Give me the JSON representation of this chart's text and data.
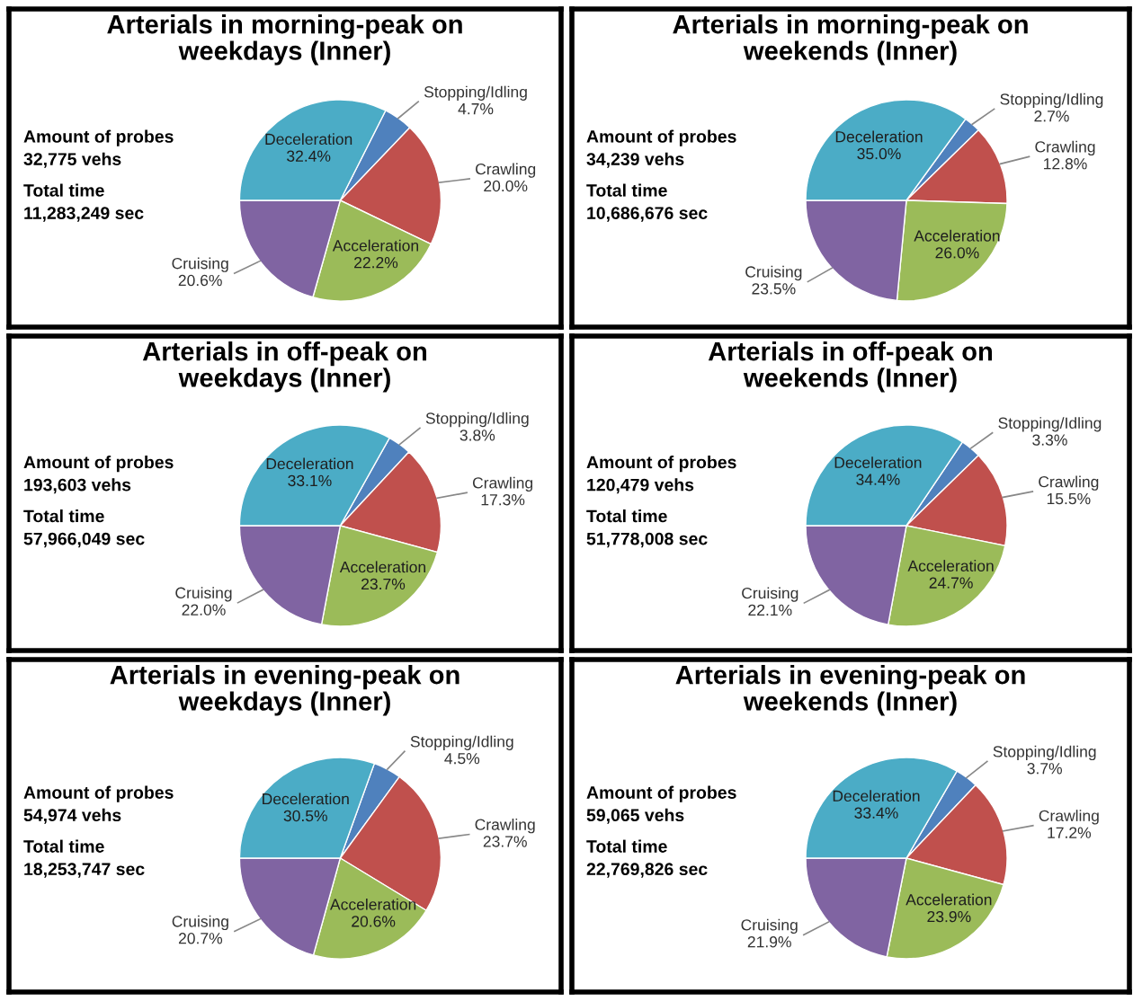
{
  "chart_data": [
    {
      "type": "pie",
      "title": "Arterials in morning-peak on weekdays (Inner)",
      "categories": [
        "Stopping/Idling",
        "Crawling",
        "Acceleration",
        "Cruising",
        "Deceleration"
      ],
      "values": [
        4.7,
        20.0,
        22.2,
        20.6,
        32.4
      ],
      "value_labels": [
        "4.7%",
        "20.0%",
        "22.2%",
        "20.6%",
        "32.4%"
      ],
      "colors": [
        "#4f81bd",
        "#c0504d",
        "#9bbb59",
        "#8064a2",
        "#4bacc6"
      ],
      "annotations": [
        "Amount of probes\n32,775 vehs",
        "Total time\n11,283,249 sec"
      ]
    },
    {
      "type": "pie",
      "title": "Arterials in morning-peak on weekends (Inner)",
      "categories": [
        "Stopping/Idling",
        "Crawling",
        "Acceleration",
        "Cruising",
        "Deceleration"
      ],
      "values": [
        2.7,
        12.8,
        26.0,
        23.5,
        35.0
      ],
      "value_labels": [
        "2.7%",
        "12.8%",
        "26.0%",
        "23.5%",
        "35.0%"
      ],
      "colors": [
        "#4f81bd",
        "#c0504d",
        "#9bbb59",
        "#8064a2",
        "#4bacc6"
      ],
      "annotations": [
        "Amount of probes\n34,239 vehs",
        "Total time\n10,686,676 sec"
      ]
    },
    {
      "type": "pie",
      "title": "Arterials in off-peak on weekdays (Inner)",
      "categories": [
        "Stopping/Idling",
        "Crawling",
        "Acceleration",
        "Cruising",
        "Deceleration"
      ],
      "values": [
        3.8,
        17.3,
        23.7,
        22.0,
        33.1
      ],
      "value_labels": [
        "3.8%",
        "17.3%",
        "23.7%",
        "22.0%",
        "33.1%"
      ],
      "colors": [
        "#4f81bd",
        "#c0504d",
        "#9bbb59",
        "#8064a2",
        "#4bacc6"
      ],
      "annotations": [
        "Amount of probes\n193,603 vehs",
        "Total time\n57,966,049 sec"
      ]
    },
    {
      "type": "pie",
      "title": "Arterials in off-peak on weekends (Inner)",
      "categories": [
        "Stopping/Idling",
        "Crawling",
        "Acceleration",
        "Cruising",
        "Deceleration"
      ],
      "values": [
        3.3,
        15.5,
        24.7,
        22.1,
        34.4
      ],
      "value_labels": [
        "3.3%",
        "15.5%",
        "24.7%",
        "22.1%",
        "34.4%"
      ],
      "colors": [
        "#4f81bd",
        "#c0504d",
        "#9bbb59",
        "#8064a2",
        "#4bacc6"
      ],
      "annotations": [
        "Amount of probes\n120,479 vehs",
        "Total time\n51,778,008 sec"
      ]
    },
    {
      "type": "pie",
      "title": "Arterials in evening-peak on weekdays (Inner)",
      "categories": [
        "Stopping/Idling",
        "Crawling",
        "Acceleration",
        "Cruising",
        "Deceleration"
      ],
      "values": [
        4.5,
        23.7,
        20.6,
        20.7,
        30.5
      ],
      "value_labels": [
        "4.5%",
        "23.7%",
        "20.6%",
        "20.7%",
        "30.5%"
      ],
      "colors": [
        "#4f81bd",
        "#c0504d",
        "#9bbb59",
        "#8064a2",
        "#4bacc6"
      ],
      "annotations": [
        "Amount of probes\n54,974 vehs",
        "Total time\n18,253,747 sec"
      ]
    },
    {
      "type": "pie",
      "title": "Arterials in evening-peak on weekends (Inner)",
      "categories": [
        "Stopping/Idling",
        "Crawling",
        "Acceleration",
        "Cruising",
        "Deceleration"
      ],
      "values": [
        3.7,
        17.2,
        23.9,
        21.9,
        33.4
      ],
      "value_labels": [
        "3.7%",
        "17.2%",
        "23.9%",
        "21.9%",
        "33.4%"
      ],
      "colors": [
        "#4f81bd",
        "#c0504d",
        "#9bbb59",
        "#8064a2",
        "#4bacc6"
      ],
      "annotations": [
        "Amount of probes\n59,065 vehs",
        "Total time\n22,769,826 sec"
      ]
    }
  ]
}
